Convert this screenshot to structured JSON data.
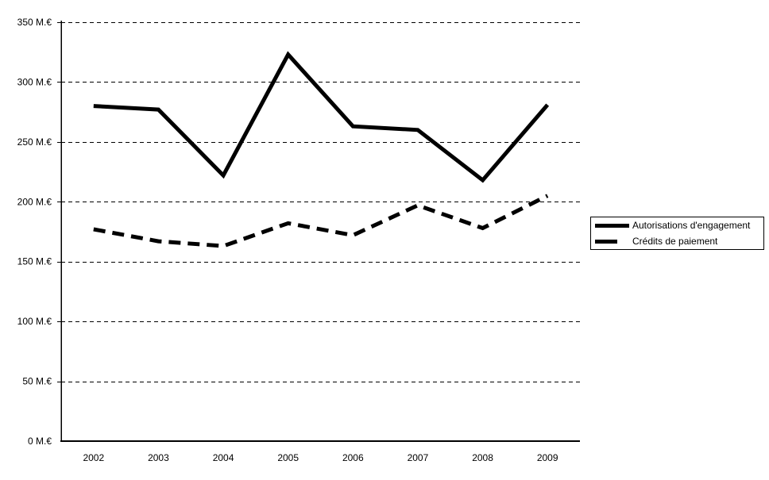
{
  "chart_data": {
    "type": "line",
    "title": "",
    "xlabel": "",
    "ylabel": "",
    "categories": [
      "2002",
      "2003",
      "2004",
      "2005",
      "2006",
      "2007",
      "2008",
      "2009"
    ],
    "series": [
      {
        "name": "Autorisations d'engagement",
        "line_style": "solid",
        "color": "#000000",
        "values": [
          280,
          277,
          222,
          323,
          263,
          260,
          218,
          281
        ]
      },
      {
        "name": "Crédits de paiement",
        "line_style": "dashed",
        "color": "#000000",
        "values": [
          177,
          167,
          163,
          182,
          172,
          197,
          178,
          205
        ]
      }
    ],
    "y_axis": {
      "unit": "M.€",
      "range": [
        0,
        350
      ],
      "ticks": [
        0,
        50,
        100,
        150,
        200,
        250,
        300,
        350
      ],
      "tick_labels": [
        "0 M.€",
        "50 M.€",
        "100 M.€",
        "150 M.€",
        "200 M.€",
        "250 M.€",
        "300 M.€",
        "350 M.€"
      ]
    },
    "grid": "horizontal-dashed",
    "legend_position": "right",
    "background_color": "#ffffff",
    "axis_color": "#000000"
  }
}
